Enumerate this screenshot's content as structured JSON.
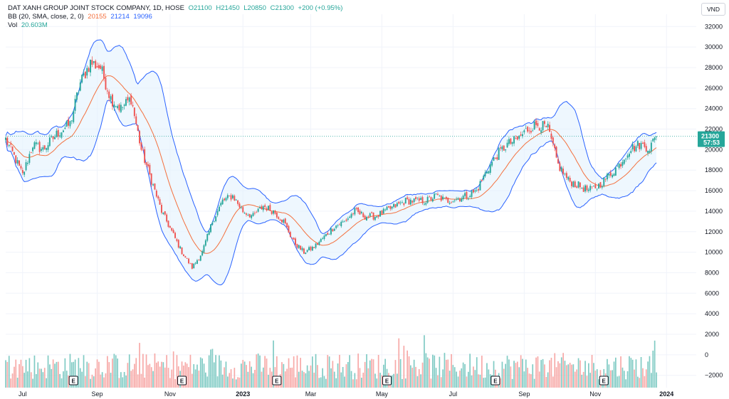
{
  "legend": {
    "title": "DAT XANH GROUP JOINT STOCK COMPANY, 1D, HOSE",
    "open": "O21100",
    "high": "H21450",
    "low": "L20850",
    "close": "C21300",
    "change": "+200 (+0.95%)",
    "bb_label": "BB (20, SMA, close, 2, 0)",
    "bb_basis": "20155",
    "bb_upper": "21214",
    "bb_lower": "19096",
    "vol_label": "Vol",
    "vol_value": "20.603M"
  },
  "currency": "VND",
  "price_tag": {
    "value": "21300",
    "countdown": "57:53"
  },
  "colors": {
    "up": "#26a69a",
    "down": "#ef5350",
    "bb_basis": "#f4703e",
    "bb_band": "#2962ff",
    "bb_fill": "#e3f2fd",
    "vol_up": "#80cbc4",
    "vol_down": "#f7a9a7"
  },
  "chart_data": {
    "type": "candlestick",
    "y_ticks": [
      32000,
      30000,
      28000,
      26000,
      24000,
      22000,
      20000,
      18000,
      16000,
      14000,
      12000,
      10000,
      8000,
      6000,
      4000,
      2000,
      0,
      -2000
    ],
    "y_tick_labels": [
      "32000",
      "30000",
      "28000",
      "26000",
      "24000",
      "22000",
      "20000",
      "18000",
      "16000",
      "14000",
      "12000",
      "10000",
      "8000",
      "6000",
      "4000",
      "2000",
      "0",
      "−2000"
    ],
    "ylim": [
      -3200,
      33200
    ],
    "x_labels": [
      {
        "label": "Jul",
        "bold": false,
        "idx": 10
      },
      {
        "label": "Sep",
        "bold": false,
        "idx": 54
      },
      {
        "label": "Nov",
        "bold": false,
        "idx": 97
      },
      {
        "label": "2023",
        "bold": true,
        "idx": 140
      },
      {
        "label": "Mar",
        "bold": false,
        "idx": 180
      },
      {
        "label": "May",
        "bold": false,
        "idx": 222
      },
      {
        "label": "Jul",
        "bold": false,
        "idx": 264
      },
      {
        "label": "Sep",
        "bold": false,
        "idx": 306
      },
      {
        "label": "Nov",
        "bold": false,
        "idx": 348
      },
      {
        "label": "2024",
        "bold": true,
        "idx": 390
      }
    ],
    "earnings_markers": [
      {
        "label": "E",
        "idx": 40
      },
      {
        "label": "E",
        "idx": 104
      },
      {
        "label": "E",
        "idx": 160
      },
      {
        "label": "E",
        "idx": 225
      },
      {
        "label": "E",
        "idx": 289
      },
      {
        "label": "E",
        "idx": 353
      }
    ],
    "earnings_icon": "earnings-flag-icon",
    "close_anchors": [
      [
        0,
        21000
      ],
      [
        6,
        19000
      ],
      [
        10,
        17500
      ],
      [
        16,
        20500
      ],
      [
        22,
        20000
      ],
      [
        30,
        21500
      ],
      [
        38,
        22500
      ],
      [
        44,
        26500
      ],
      [
        50,
        28500
      ],
      [
        56,
        28000
      ],
      [
        62,
        25000
      ],
      [
        68,
        24000
      ],
      [
        74,
        25000
      ],
      [
        80,
        20000
      ],
      [
        86,
        17000
      ],
      [
        92,
        14000
      ],
      [
        98,
        12000
      ],
      [
        104,
        10000
      ],
      [
        110,
        8500
      ],
      [
        116,
        10000
      ],
      [
        122,
        13000
      ],
      [
        128,
        15000
      ],
      [
        134,
        15500
      ],
      [
        140,
        14000
      ],
      [
        146,
        13500
      ],
      [
        152,
        14500
      ],
      [
        158,
        14000
      ],
      [
        164,
        13000
      ],
      [
        170,
        11000
      ],
      [
        176,
        10000
      ],
      [
        182,
        10500
      ],
      [
        188,
        11500
      ],
      [
        194,
        12500
      ],
      [
        200,
        13000
      ],
      [
        206,
        14000
      ],
      [
        212,
        13500
      ],
      [
        218,
        13500
      ],
      [
        224,
        14000
      ],
      [
        230,
        14500
      ],
      [
        236,
        15000
      ],
      [
        242,
        15000
      ],
      [
        248,
        15000
      ],
      [
        254,
        15500
      ],
      [
        260,
        15000
      ],
      [
        266,
        15200
      ],
      [
        272,
        15500
      ],
      [
        278,
        16000
      ],
      [
        284,
        18000
      ],
      [
        290,
        19500
      ],
      [
        296,
        20500
      ],
      [
        302,
        21000
      ],
      [
        308,
        22000
      ],
      [
        314,
        22500
      ],
      [
        320,
        22000
      ],
      [
        326,
        18500
      ],
      [
        332,
        17000
      ],
      [
        338,
        16500
      ],
      [
        344,
        16000
      ],
      [
        350,
        16500
      ],
      [
        356,
        17500
      ],
      [
        362,
        18500
      ],
      [
        368,
        20000
      ],
      [
        374,
        20500
      ],
      [
        380,
        20200
      ],
      [
        384,
        21300
      ]
    ],
    "candle_count": 385,
    "last_close": 21300
  }
}
